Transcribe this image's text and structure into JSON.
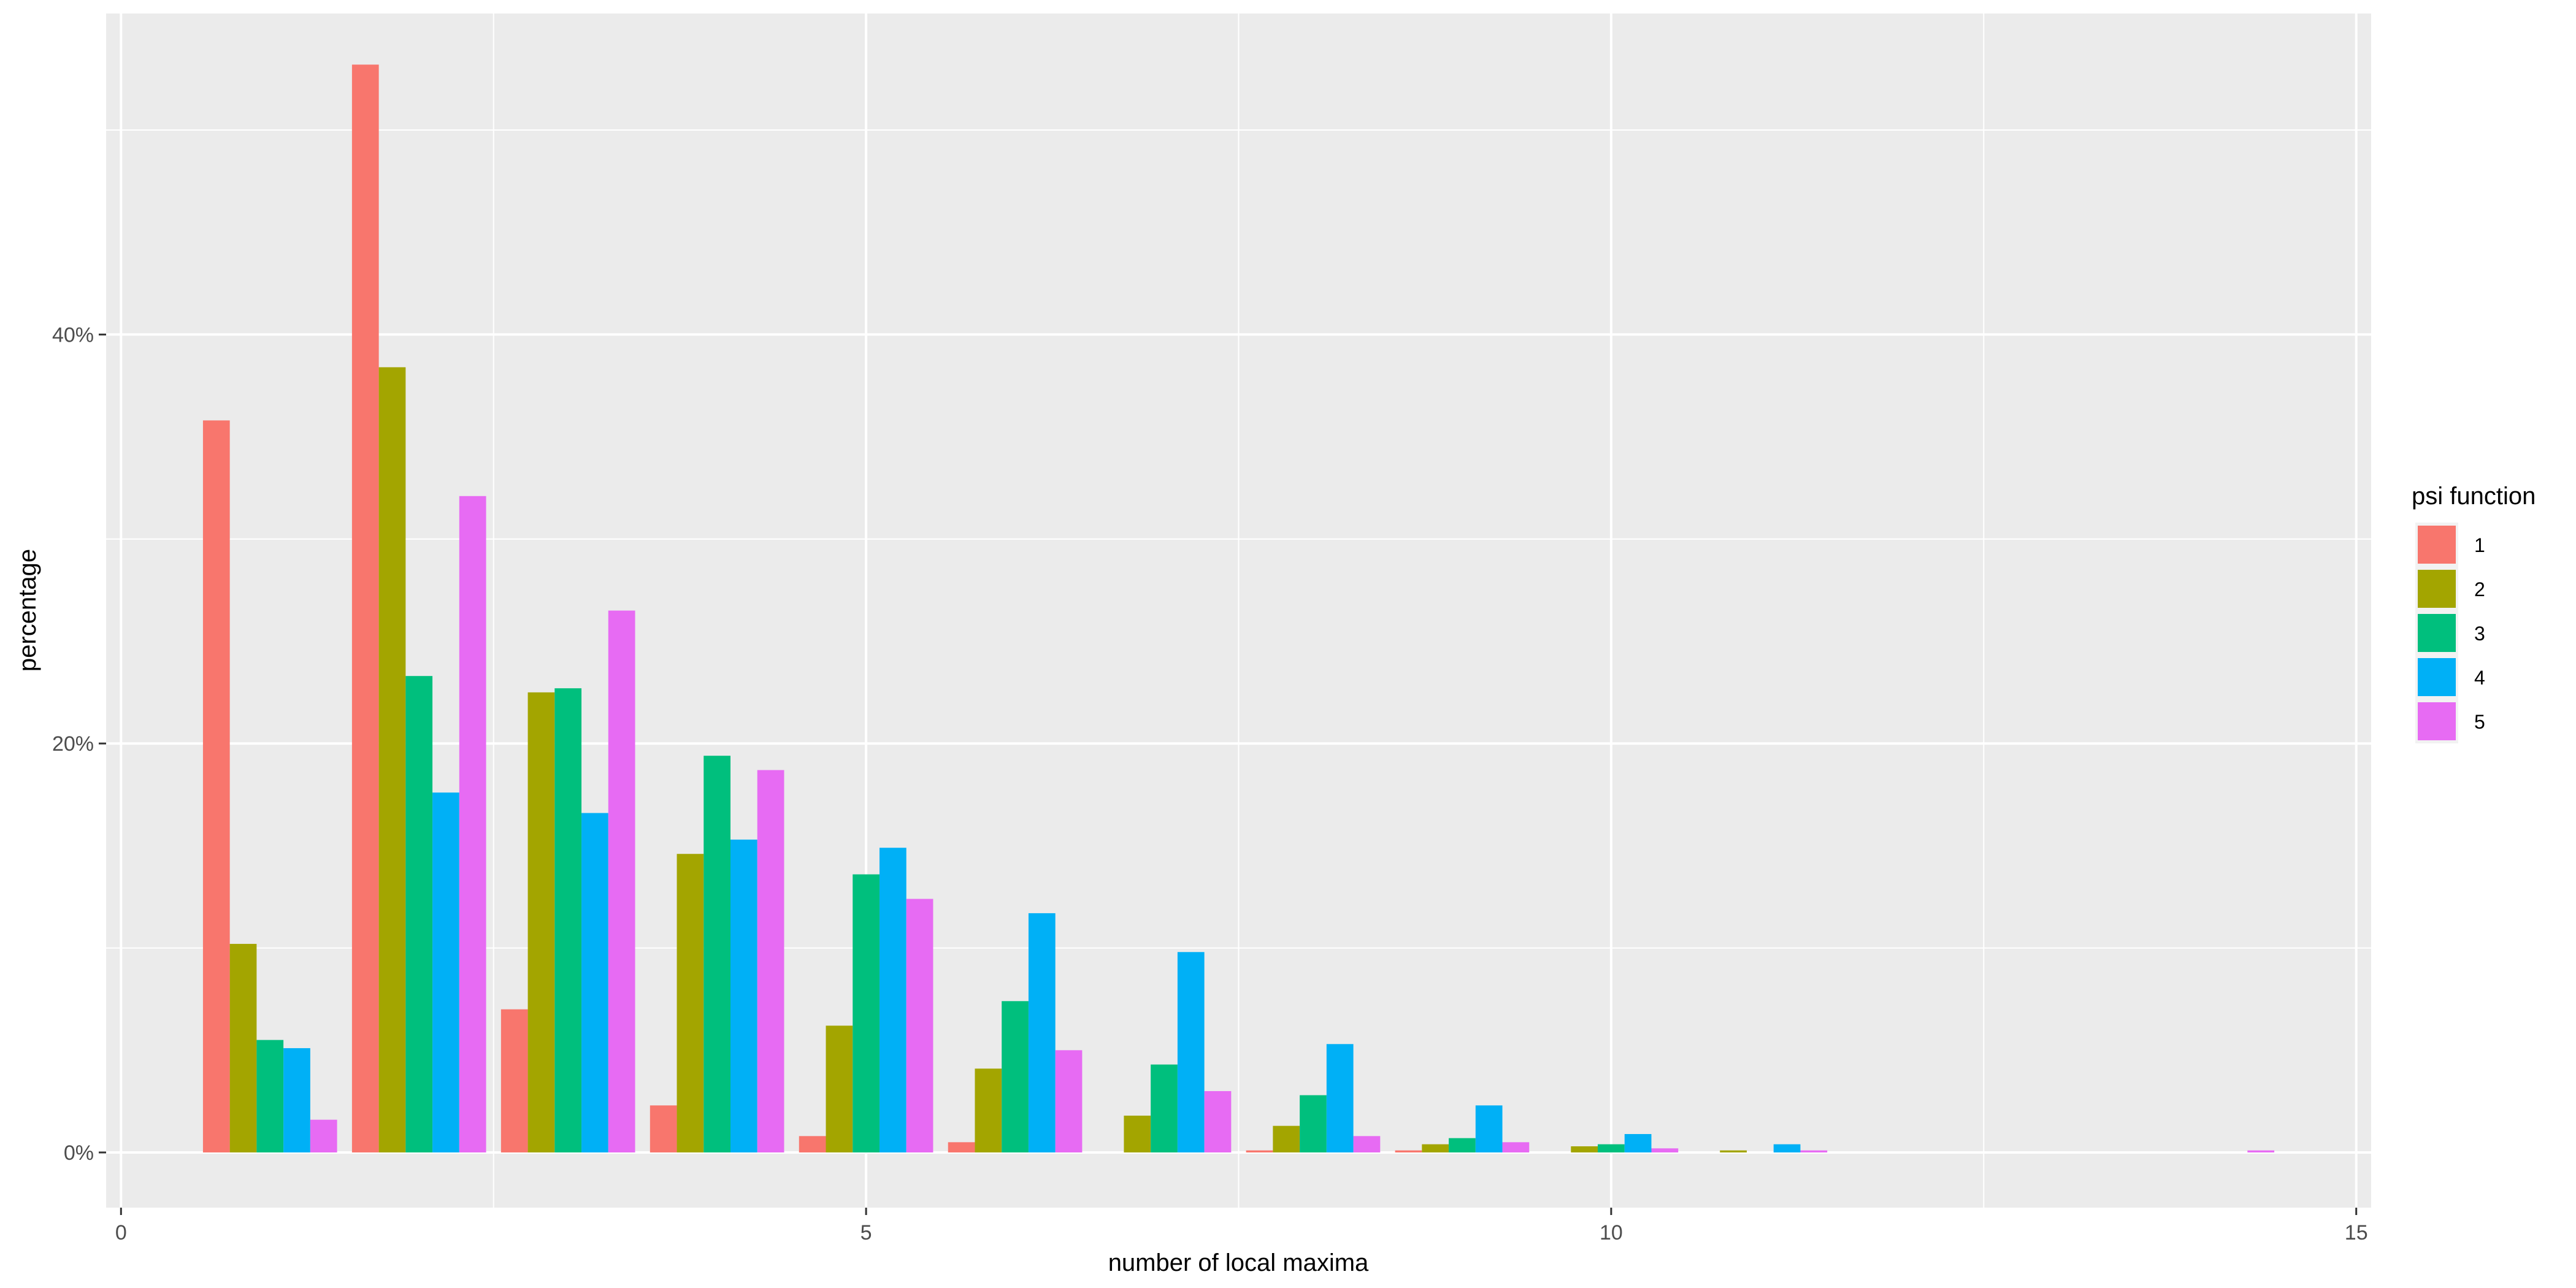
{
  "chart_data": {
    "type": "bar",
    "xlabel": "number of local maxima",
    "ylabel": "percentage",
    "x_ticks": [
      "0",
      "5",
      "10",
      "15"
    ],
    "y_ticks": [
      "0%",
      "20%",
      "40%"
    ],
    "xlim": [
      -0.1,
      15.1
    ],
    "ylim": [
      -2.7,
      55.7
    ],
    "legend_position": "right",
    "legend_title": "psi function",
    "grid": true,
    "x": [
      1,
      2,
      3,
      4,
      5,
      6,
      7,
      8,
      9,
      10,
      11,
      14
    ],
    "series": [
      {
        "name": "1",
        "color": "#F8766D",
        "values": [
          35.8,
          53.2,
          7.0,
          2.3,
          0.8,
          0.5,
          0,
          0.1,
          0.1,
          0,
          0,
          0
        ]
      },
      {
        "name": "2",
        "color": "#A3A500",
        "values": [
          10.2,
          38.4,
          22.5,
          14.6,
          6.2,
          4.1,
          1.8,
          1.3,
          0.4,
          0.3,
          0.1,
          0
        ]
      },
      {
        "name": "3",
        "color": "#00BF7D",
        "values": [
          5.5,
          23.3,
          22.7,
          19.4,
          13.6,
          7.4,
          4.3,
          2.8,
          0.7,
          0.4,
          0,
          0
        ]
      },
      {
        "name": "4",
        "color": "#00B0F6",
        "values": [
          5.1,
          17.6,
          16.6,
          15.3,
          14.9,
          11.7,
          9.8,
          5.3,
          2.3,
          0.9,
          0.4,
          0
        ]
      },
      {
        "name": "5",
        "color": "#E76BF3",
        "values": [
          1.6,
          32.1,
          26.5,
          18.7,
          12.4,
          5.0,
          3.0,
          0.8,
          0.5,
          0.2,
          0.1,
          0.1
        ]
      }
    ]
  }
}
